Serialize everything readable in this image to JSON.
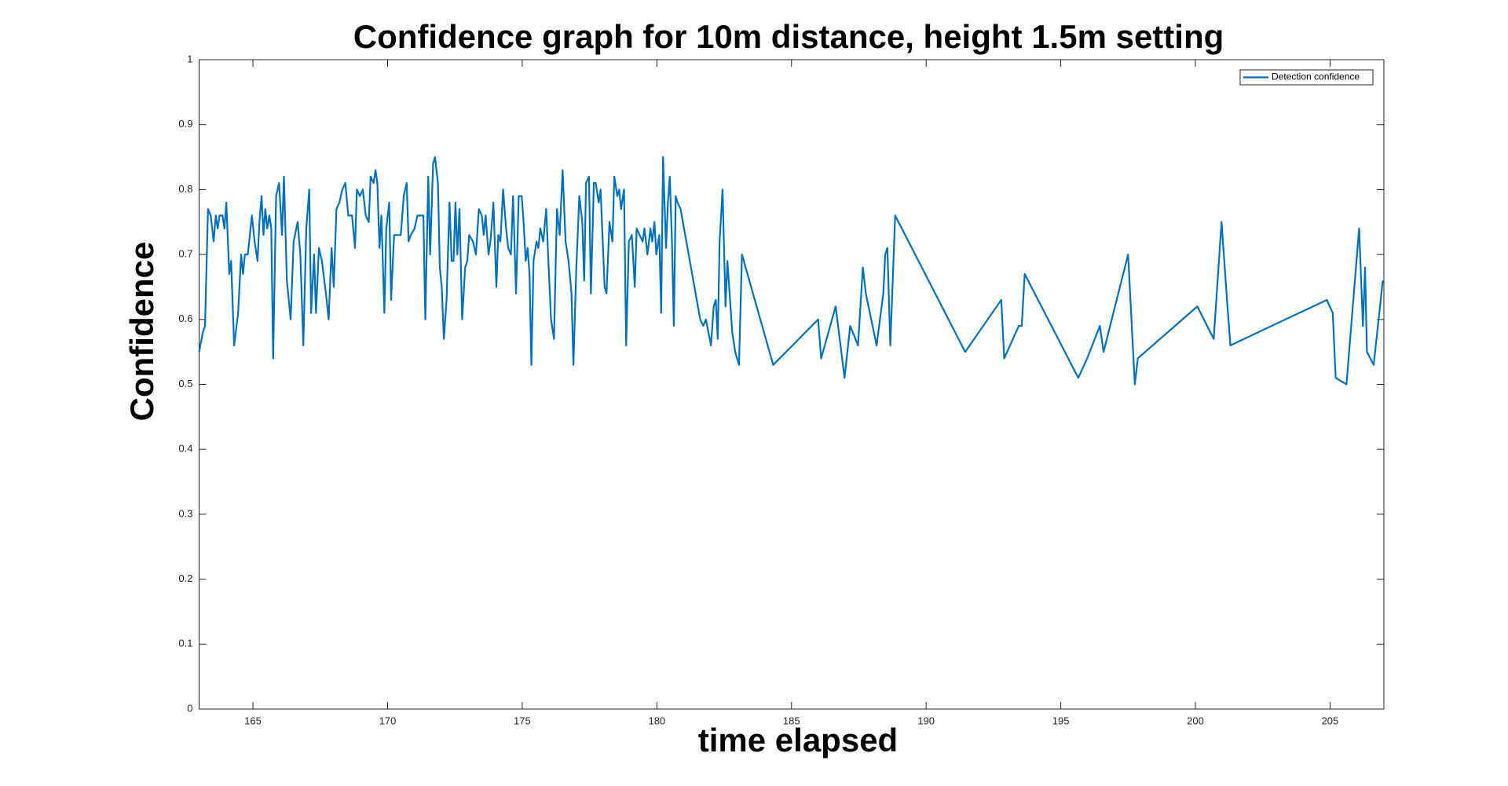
{
  "chart_data": {
    "type": "line",
    "title": "Confidence graph for 10m distance, height 1.5m setting",
    "x_label": "time elapsed",
    "y_label": "Confidence",
    "xlim": [
      163,
      207
    ],
    "ylim": [
      0,
      1
    ],
    "xticks": [
      165,
      170,
      175,
      180,
      185,
      190,
      195,
      200,
      205
    ],
    "yticks": [
      0,
      0.1,
      0.2,
      0.3,
      0.4,
      0.5,
      0.6,
      0.7,
      0.8,
      0.9,
      1
    ],
    "grid": false,
    "legend": "northeast",
    "x": [
      163.0,
      163.14,
      163.22,
      163.33,
      163.43,
      163.54,
      163.62,
      163.69,
      163.76,
      163.87,
      163.94,
      164.01,
      164.12,
      164.19,
      164.3,
      164.45,
      164.56,
      164.63,
      164.7,
      164.81,
      164.96,
      165.06,
      165.17,
      165.24,
      165.32,
      165.39,
      165.46,
      165.53,
      165.61,
      165.68,
      165.75,
      165.86,
      165.97,
      166.08,
      166.15,
      166.26,
      166.4,
      166.51,
      166.66,
      166.76,
      166.87,
      166.98,
      167.09,
      167.16,
      167.27,
      167.34,
      167.45,
      167.56,
      167.71,
      167.81,
      167.92,
      168.0,
      168.1,
      168.21,
      168.32,
      168.43,
      168.54,
      168.68,
      168.79,
      168.86,
      168.97,
      169.08,
      169.19,
      169.3,
      169.37,
      169.48,
      169.55,
      169.62,
      169.7,
      169.77,
      169.88,
      169.95,
      170.06,
      170.13,
      170.24,
      170.38,
      170.49,
      170.6,
      170.71,
      170.78,
      170.86,
      171.0,
      171.11,
      171.18,
      171.33,
      171.4,
      171.51,
      171.58,
      171.69,
      171.76,
      171.87,
      171.94,
      172.01,
      172.09,
      172.19,
      172.3,
      172.38,
      172.45,
      172.52,
      172.59,
      172.67,
      172.77,
      172.88,
      172.96,
      173.03,
      173.17,
      173.28,
      173.39,
      173.5,
      173.57,
      173.64,
      173.75,
      173.82,
      173.93,
      174.04,
      174.11,
      174.19,
      174.29,
      174.4,
      174.48,
      174.58,
      174.66,
      174.77,
      174.87,
      174.98,
      175.05,
      175.13,
      175.2,
      175.27,
      175.34,
      175.42,
      175.53,
      175.6,
      175.67,
      175.78,
      175.89,
      175.96,
      176.07,
      176.18,
      176.29,
      176.39,
      176.5,
      176.61,
      176.72,
      176.83,
      176.9,
      177.01,
      177.12,
      177.23,
      177.3,
      177.37,
      177.48,
      177.55,
      177.66,
      177.73,
      177.84,
      177.91,
      177.99,
      178.06,
      178.13,
      178.24,
      178.35,
      178.42,
      178.53,
      178.6,
      178.67,
      178.78,
      178.86,
      178.96,
      179.07,
      179.18,
      179.25,
      179.36,
      179.47,
      179.54,
      179.65,
      179.76,
      179.83,
      179.91,
      179.98,
      180.09,
      180.16,
      180.23,
      180.34,
      180.41,
      180.48,
      180.56,
      180.63,
      180.7,
      180.77,
      180.88,
      181.61,
      181.72,
      181.82,
      182.01,
      182.11,
      182.19,
      182.26,
      182.33,
      182.44,
      182.55,
      182.62,
      182.8,
      182.91,
      183.05,
      183.16,
      184.32,
      185.99,
      186.1,
      186.64,
      186.97,
      187.18,
      187.47,
      187.65,
      187.76,
      188.16,
      188.41,
      188.48,
      188.56,
      188.67,
      188.85,
      191.45,
      192.79,
      192.9,
      193.44,
      193.55,
      193.66,
      195.65,
      195.87,
      195.98,
      196.45,
      196.59,
      197.5,
      197.75,
      197.86,
      200.07,
      200.68,
      200.97,
      201.19,
      201.3,
      204.88,
      205.1,
      205.21,
      205.61,
      206.08,
      206.22,
      206.3,
      206.37,
      206.62,
      206.96
    ],
    "series": [
      {
        "name": "Detection confidence",
        "color": "#0072bd",
        "values": [
          0.55,
          0.58,
          0.59,
          0.77,
          0.76,
          0.72,
          0.76,
          0.74,
          0.76,
          0.76,
          0.74,
          0.78,
          0.67,
          0.69,
          0.56,
          0.61,
          0.7,
          0.67,
          0.7,
          0.7,
          0.76,
          0.72,
          0.69,
          0.75,
          0.79,
          0.73,
          0.77,
          0.74,
          0.76,
          0.74,
          0.54,
          0.79,
          0.81,
          0.73,
          0.82,
          0.66,
          0.6,
          0.72,
          0.75,
          0.7,
          0.56,
          0.74,
          0.8,
          0.61,
          0.7,
          0.61,
          0.71,
          0.69,
          0.64,
          0.6,
          0.71,
          0.65,
          0.77,
          0.78,
          0.8,
          0.81,
          0.76,
          0.76,
          0.71,
          0.8,
          0.79,
          0.8,
          0.76,
          0.75,
          0.82,
          0.81,
          0.83,
          0.81,
          0.71,
          0.76,
          0.61,
          0.74,
          0.78,
          0.63,
          0.73,
          0.73,
          0.73,
          0.79,
          0.81,
          0.72,
          0.73,
          0.74,
          0.76,
          0.76,
          0.76,
          0.6,
          0.82,
          0.7,
          0.84,
          0.85,
          0.81,
          0.68,
          0.65,
          0.57,
          0.63,
          0.78,
          0.69,
          0.69,
          0.78,
          0.7,
          0.77,
          0.6,
          0.68,
          0.69,
          0.73,
          0.72,
          0.7,
          0.77,
          0.76,
          0.73,
          0.76,
          0.7,
          0.72,
          0.78,
          0.65,
          0.73,
          0.72,
          0.8,
          0.74,
          0.71,
          0.7,
          0.79,
          0.64,
          0.79,
          0.79,
          0.75,
          0.69,
          0.71,
          0.67,
          0.53,
          0.69,
          0.72,
          0.71,
          0.74,
          0.72,
          0.77,
          0.7,
          0.6,
          0.57,
          0.77,
          0.73,
          0.83,
          0.72,
          0.69,
          0.64,
          0.53,
          0.68,
          0.79,
          0.75,
          0.66,
          0.81,
          0.82,
          0.64,
          0.81,
          0.81,
          0.78,
          0.8,
          0.72,
          0.65,
          0.64,
          0.75,
          0.72,
          0.82,
          0.79,
          0.8,
          0.77,
          0.8,
          0.56,
          0.72,
          0.73,
          0.65,
          0.74,
          0.73,
          0.72,
          0.74,
          0.7,
          0.74,
          0.72,
          0.75,
          0.7,
          0.73,
          0.61,
          0.85,
          0.71,
          0.78,
          0.82,
          0.72,
          0.59,
          0.79,
          0.78,
          0.77,
          0.6,
          0.59,
          0.6,
          0.56,
          0.62,
          0.63,
          0.57,
          0.72,
          0.8,
          0.62,
          0.69,
          0.58,
          0.55,
          0.53,
          0.7,
          0.53,
          0.6,
          0.54,
          0.62,
          0.51,
          0.59,
          0.56,
          0.68,
          0.64,
          0.56,
          0.64,
          0.7,
          0.71,
          0.56,
          0.76,
          0.55,
          0.63,
          0.54,
          0.59,
          0.59,
          0.67,
          0.51,
          0.53,
          0.54,
          0.59,
          0.55,
          0.7,
          0.5,
          0.54,
          0.62,
          0.57,
          0.75,
          0.62,
          0.56,
          0.63,
          0.61,
          0.51,
          0.5,
          0.74,
          0.59,
          0.68,
          0.55,
          0.53,
          0.66
        ]
      }
    ]
  }
}
